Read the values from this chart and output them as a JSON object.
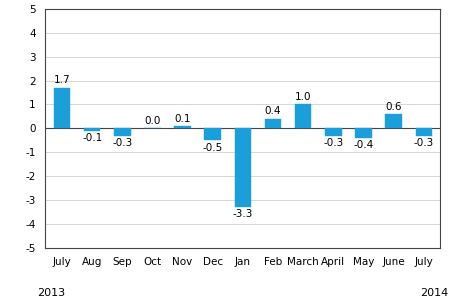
{
  "categories": [
    "July",
    "Aug",
    "Sep",
    "Oct",
    "Nov",
    "Dec",
    "Jan",
    "Feb",
    "March",
    "April",
    "May",
    "June",
    "July"
  ],
  "values": [
    1.7,
    -0.1,
    -0.3,
    0.0,
    0.1,
    -0.5,
    -3.3,
    0.4,
    1.0,
    -0.3,
    -0.4,
    0.6,
    -0.3
  ],
  "bar_color": "#1a9fda",
  "ylim": [
    -5,
    5
  ],
  "yticks": [
    -5,
    -4,
    -3,
    -2,
    -1,
    0,
    1,
    2,
    3,
    4,
    5
  ],
  "label_fontsize": 7.5,
  "tick_fontsize": 7.5,
  "year_fontsize": 8,
  "bar_width": 0.55,
  "background_color": "#ffffff",
  "grid_color": "#c8c8c8",
  "spine_color": "#444444",
  "zero_line_color": "#444444"
}
